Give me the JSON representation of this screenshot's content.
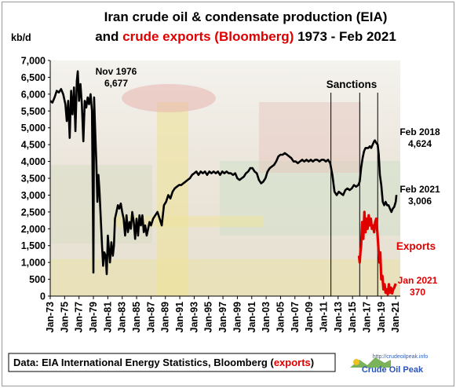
{
  "chart_data": {
    "type": "line",
    "title_line1": "Iran crude oil & condensate production (EIA)",
    "title_line2_prefix": "and ",
    "title_line2_red": "crude exports (Bloomberg)",
    "title_line2_suffix": " 1973 - Feb 2021",
    "ylabel": "kb/d",
    "xlabel": "",
    "ylim": [
      0,
      7000
    ],
    "yticks": [
      "0",
      "500",
      "1,000",
      "1,500",
      "2,000",
      "2,500",
      "3,000",
      "3,500",
      "4,000",
      "4,500",
      "5,000",
      "5,500",
      "6,000",
      "6,500",
      "7,000"
    ],
    "xticks": [
      "Jan-73",
      "Jan-75",
      "Jan-77",
      "Jan-79",
      "Jan-81",
      "Jan-83",
      "Jan-85",
      "Jan-87",
      "Jan-89",
      "Jan-91",
      "Jan-93",
      "Jan-95",
      "Jan-97",
      "Jan-99",
      "Jan-01",
      "Jan-03",
      "Jan-05",
      "Jan-07",
      "Jan-09",
      "Jan-11",
      "Jan-13",
      "Jan-15",
      "Jan-17",
      "Jan-19",
      "Jan-21"
    ],
    "grid": false,
    "colors": {
      "production": "#000000",
      "exports": "#e00000",
      "title_red": "#e00000",
      "sanction_lines": "#000000"
    },
    "series": [
      {
        "name": "",
        "points": [
          [
            1973.0,
            5800
          ],
          [
            1973.3,
            5750
          ],
          [
            1973.6,
            5900
          ],
          [
            1973.9,
            6100
          ],
          [
            1974.2,
            6050
          ],
          [
            1974.5,
            6150
          ],
          [
            1974.8,
            6000
          ],
          [
            1975.1,
            5700
          ],
          [
            1975.3,
            5200
          ],
          [
            1975.5,
            5800
          ],
          [
            1975.7,
            4700
          ],
          [
            1975.9,
            6100
          ],
          [
            1976.1,
            5400
          ],
          [
            1976.3,
            6200
          ],
          [
            1976.5,
            4900
          ],
          [
            1976.7,
            6400
          ],
          [
            1976.83,
            6677
          ],
          [
            1977.0,
            5800
          ],
          [
            1977.2,
            6300
          ],
          [
            1977.4,
            5700
          ],
          [
            1977.6,
            4600
          ],
          [
            1977.8,
            5800
          ],
          [
            1978.0,
            5600
          ],
          [
            1978.2,
            5900
          ],
          [
            1978.4,
            5700
          ],
          [
            1978.6,
            6000
          ],
          [
            1978.8,
            5500
          ],
          [
            1978.95,
            2000
          ],
          [
            1979.0,
            700
          ],
          [
            1979.1,
            5900
          ],
          [
            1979.25,
            4900
          ],
          [
            1979.4,
            4000
          ],
          [
            1979.55,
            2800
          ],
          [
            1979.7,
            3600
          ],
          [
            1979.85,
            3100
          ],
          [
            1980.0,
            2400
          ],
          [
            1980.2,
            1500
          ],
          [
            1980.35,
            900
          ],
          [
            1980.5,
            1300
          ],
          [
            1980.7,
            1200
          ],
          [
            1980.85,
            650
          ],
          [
            1981.0,
            1800
          ],
          [
            1981.15,
            1400
          ],
          [
            1981.3,
            1000
          ],
          [
            1981.5,
            1600
          ],
          [
            1981.7,
            1200
          ],
          [
            1981.85,
            1500
          ],
          [
            1982.0,
            2300
          ],
          [
            1982.2,
            2500
          ],
          [
            1982.4,
            2700
          ],
          [
            1982.6,
            2600
          ],
          [
            1982.8,
            2750
          ],
          [
            1983.0,
            2500
          ],
          [
            1983.2,
            2300
          ],
          [
            1983.4,
            1800
          ],
          [
            1983.6,
            2400
          ],
          [
            1983.8,
            1900
          ],
          [
            1984.0,
            2200
          ],
          [
            1984.2,
            2000
          ],
          [
            1984.4,
            2500
          ],
          [
            1984.6,
            2200
          ],
          [
            1984.8,
            1700
          ],
          [
            1985.0,
            2300
          ],
          [
            1985.2,
            1800
          ],
          [
            1985.4,
            2400
          ],
          [
            1985.6,
            2100
          ],
          [
            1985.8,
            2400
          ],
          [
            1986.0,
            1900
          ],
          [
            1986.2,
            2100
          ],
          [
            1986.4,
            1800
          ],
          [
            1986.6,
            2000
          ],
          [
            1986.8,
            2200
          ],
          [
            1987.0,
            2100
          ],
          [
            1987.3,
            2300
          ],
          [
            1987.6,
            2400
          ],
          [
            1987.9,
            2500
          ],
          [
            1988.2,
            2300
          ],
          [
            1988.5,
            2100
          ],
          [
            1988.8,
            2700
          ],
          [
            1989.1,
            2800
          ],
          [
            1989.4,
            3000
          ],
          [
            1989.7,
            2900
          ],
          [
            1990.0,
            3100
          ],
          [
            1990.3,
            3200
          ],
          [
            1990.6,
            3250
          ],
          [
            1990.9,
            3300
          ],
          [
            1991.2,
            3300
          ],
          [
            1991.5,
            3350
          ],
          [
            1991.8,
            3400
          ],
          [
            1992.1,
            3450
          ],
          [
            1992.4,
            3500
          ],
          [
            1992.7,
            3600
          ],
          [
            1993.0,
            3650
          ],
          [
            1993.3,
            3700
          ],
          [
            1993.6,
            3600
          ],
          [
            1993.9,
            3700
          ],
          [
            1994.2,
            3650
          ],
          [
            1994.5,
            3700
          ],
          [
            1994.8,
            3600
          ],
          [
            1995.1,
            3700
          ],
          [
            1995.4,
            3650
          ],
          [
            1995.7,
            3700
          ],
          [
            1996.0,
            3650
          ],
          [
            1996.3,
            3700
          ],
          [
            1996.6,
            3600
          ],
          [
            1996.9,
            3700
          ],
          [
            1997.2,
            3650
          ],
          [
            1997.5,
            3700
          ],
          [
            1997.8,
            3650
          ],
          [
            1998.1,
            3650
          ],
          [
            1998.4,
            3600
          ],
          [
            1998.7,
            3650
          ],
          [
            1999.0,
            3500
          ],
          [
            1999.3,
            3450
          ],
          [
            1999.6,
            3500
          ],
          [
            1999.9,
            3550
          ],
          [
            2000.2,
            3650
          ],
          [
            2000.5,
            3700
          ],
          [
            2000.8,
            3800
          ],
          [
            2001.1,
            3800
          ],
          [
            2001.4,
            3700
          ],
          [
            2001.7,
            3650
          ],
          [
            2002.0,
            3450
          ],
          [
            2002.3,
            3350
          ],
          [
            2002.6,
            3400
          ],
          [
            2002.9,
            3500
          ],
          [
            2003.2,
            3700
          ],
          [
            2003.5,
            3800
          ],
          [
            2003.8,
            3850
          ],
          [
            2004.1,
            3900
          ],
          [
            2004.4,
            4000
          ],
          [
            2004.7,
            4150
          ],
          [
            2005.0,
            4200
          ],
          [
            2005.3,
            4200
          ],
          [
            2005.6,
            4250
          ],
          [
            2005.9,
            4200
          ],
          [
            2006.2,
            4150
          ],
          [
            2006.5,
            4100
          ],
          [
            2006.8,
            4000
          ],
          [
            2007.1,
            4000
          ],
          [
            2007.4,
            3950
          ],
          [
            2007.7,
            4000
          ],
          [
            2008.0,
            4050
          ],
          [
            2008.3,
            4000
          ],
          [
            2008.6,
            4050
          ],
          [
            2008.9,
            4000
          ],
          [
            2009.2,
            4050
          ],
          [
            2009.5,
            4000
          ],
          [
            2009.8,
            4050
          ],
          [
            2010.1,
            4050
          ],
          [
            2010.4,
            4000
          ],
          [
            2010.7,
            4050
          ],
          [
            2011.0,
            4050
          ],
          [
            2011.3,
            4000
          ],
          [
            2011.6,
            4050
          ],
          [
            2011.9,
            3950
          ],
          [
            2012.2,
            3600
          ],
          [
            2012.5,
            3100
          ],
          [
            2012.8,
            3000
          ],
          [
            2013.1,
            3100
          ],
          [
            2013.4,
            3050
          ],
          [
            2013.7,
            3000
          ],
          [
            2014.0,
            3150
          ],
          [
            2014.3,
            3200
          ],
          [
            2014.6,
            3150
          ],
          [
            2014.9,
            3200
          ],
          [
            2015.2,
            3300
          ],
          [
            2015.5,
            3250
          ],
          [
            2015.8,
            3300
          ],
          [
            2016.0,
            3400
          ],
          [
            2016.2,
            3800
          ],
          [
            2016.4,
            4100
          ],
          [
            2016.6,
            4300
          ],
          [
            2016.8,
            4400
          ],
          [
            2017.0,
            4400
          ],
          [
            2017.2,
            4400
          ],
          [
            2017.4,
            4450
          ],
          [
            2017.6,
            4400
          ],
          [
            2017.8,
            4500
          ],
          [
            2018.0,
            4600
          ],
          [
            2018.1,
            4624
          ],
          [
            2018.3,
            4550
          ],
          [
            2018.5,
            4500
          ],
          [
            2018.65,
            4200
          ],
          [
            2018.8,
            3600
          ],
          [
            2019.0,
            3300
          ],
          [
            2019.2,
            2800
          ],
          [
            2019.4,
            2700
          ],
          [
            2019.6,
            2800
          ],
          [
            2019.8,
            2700
          ],
          [
            2020.0,
            2700
          ],
          [
            2020.2,
            2600
          ],
          [
            2020.4,
            2500
          ],
          [
            2020.6,
            2600
          ],
          [
            2020.8,
            2650
          ],
          [
            2021.0,
            2800
          ],
          [
            2021.1,
            3006
          ]
        ]
      },
      {
        "name": "",
        "points": [
          [
            2015.9,
            1200
          ],
          [
            2016.0,
            1000
          ],
          [
            2016.1,
            1300
          ],
          [
            2016.2,
            1500
          ],
          [
            2016.35,
            2200
          ],
          [
            2016.5,
            1700
          ],
          [
            2016.65,
            2500
          ],
          [
            2016.8,
            1900
          ],
          [
            2016.95,
            2300
          ],
          [
            2017.1,
            2000
          ],
          [
            2017.25,
            2400
          ],
          [
            2017.4,
            2100
          ],
          [
            2017.55,
            2300
          ],
          [
            2017.7,
            2000
          ],
          [
            2017.85,
            2100
          ],
          [
            2018.0,
            1900
          ],
          [
            2018.15,
            2200
          ],
          [
            2018.3,
            2300
          ],
          [
            2018.45,
            1900
          ],
          [
            2018.6,
            1400
          ],
          [
            2018.75,
            1000
          ],
          [
            2018.85,
            1300
          ],
          [
            2019.0,
            500
          ],
          [
            2019.15,
            600
          ],
          [
            2019.3,
            200
          ],
          [
            2019.45,
            350
          ],
          [
            2019.6,
            100
          ],
          [
            2019.75,
            200
          ],
          [
            2019.9,
            50
          ],
          [
            2020.05,
            350
          ],
          [
            2020.2,
            100
          ],
          [
            2020.35,
            250
          ],
          [
            2020.5,
            80
          ],
          [
            2020.65,
            200
          ],
          [
            2020.8,
            250
          ],
          [
            2021.0,
            370
          ]
        ]
      }
    ],
    "vlines": [
      2012.0,
      2016.0,
      2018.5
    ],
    "annotations": {
      "nov1976_date": "Nov 1976",
      "nov1976_value": "6,677",
      "sanctions": "Sanctions",
      "feb2018_date": "Feb 2018",
      "feb2018_value": "4,624",
      "feb2021_date": "Feb 2021",
      "feb2021_value": "3,006",
      "exports": "Exports",
      "jan2021_date": "Jan 2021",
      "jan2021_value": "370"
    }
  },
  "source": {
    "prefix": "Data: EIA International Energy Statistics, Bloomberg (",
    "red": "exports",
    "suffix": ")"
  },
  "logo": {
    "url": "http://crudeoilpeak.info",
    "name": "Crude Oil Peak"
  }
}
